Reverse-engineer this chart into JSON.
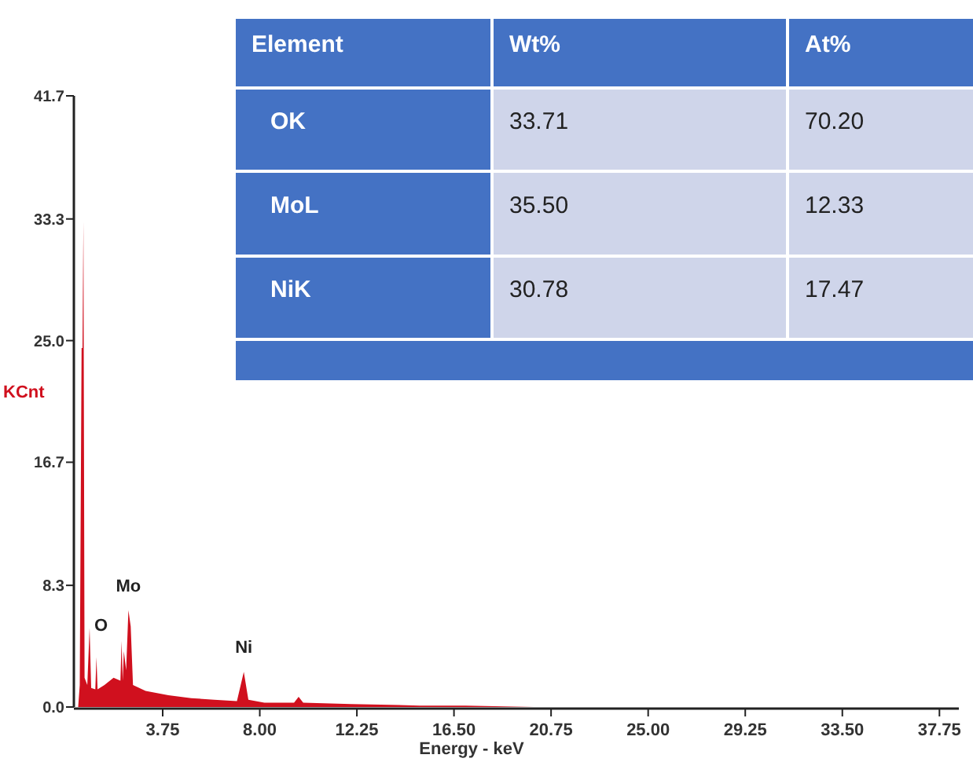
{
  "chart_data": {
    "type": "area",
    "xlabel": "Energy - keV",
    "ylabel": "KCnt",
    "x": [
      0.05,
      0.12,
      0.2,
      0.24,
      0.28,
      0.33,
      0.45,
      0.55,
      0.62,
      0.8,
      0.85,
      0.9,
      1.2,
      1.6,
      1.9,
      1.95,
      2.0,
      2.05,
      2.15,
      2.25,
      2.35,
      2.45,
      3,
      4,
      5,
      6,
      7,
      7.3,
      7.5,
      8.2,
      9.5,
      9.7,
      9.9,
      12,
      15,
      17,
      20,
      38.6
    ],
    "series": [
      {
        "color": "#d0101e",
        "values": [
          0,
          1.5,
          24.5,
          24.5,
          33.1,
          2,
          1.5,
          5.4,
          1.3,
          1.2,
          3.4,
          1.2,
          1.5,
          2.0,
          1.8,
          4.5,
          1.8,
          3.8,
          2.5,
          6.6,
          5.5,
          1.5,
          1.1,
          0.8,
          0.6,
          0.5,
          0.4,
          2.4,
          0.5,
          0.3,
          0.3,
          0.7,
          0.3,
          0.2,
          0.1,
          0.1,
          0,
          0
        ]
      }
    ],
    "xlim": [
      0,
      38.6
    ],
    "ylim": [
      0,
      41.7
    ],
    "xticks": [
      3.75,
      {
        "value": 8,
        "label": "8.00"
      },
      12.25,
      {
        "value": 16.5,
        "label": "16.50"
      },
      20.75,
      {
        "value": 25,
        "label": "25.00"
      },
      29.25,
      {
        "value": 33.5,
        "label": "33.50"
      },
      37.75
    ],
    "yticks": [
      {
        "value": 0,
        "label": "0.0"
      },
      8.3,
      16.7,
      {
        "value": 25,
        "label": "25.0"
      },
      33.3,
      41.7
    ],
    "annotations": [
      {
        "text": "O",
        "x": 0.55,
        "y": 5.4
      },
      {
        "text": "Mo",
        "x": 2.25,
        "y": 6.6
      },
      {
        "text": "Ni",
        "x": 7.3,
        "y": 2.4
      },
      "Element",
      "Wt%",
      "At%",
      "OK",
      "33.71",
      "70.20",
      "MoL",
      "35.50",
      "12.33",
      "NiK",
      "30.78",
      "17.47"
    ]
  }
}
